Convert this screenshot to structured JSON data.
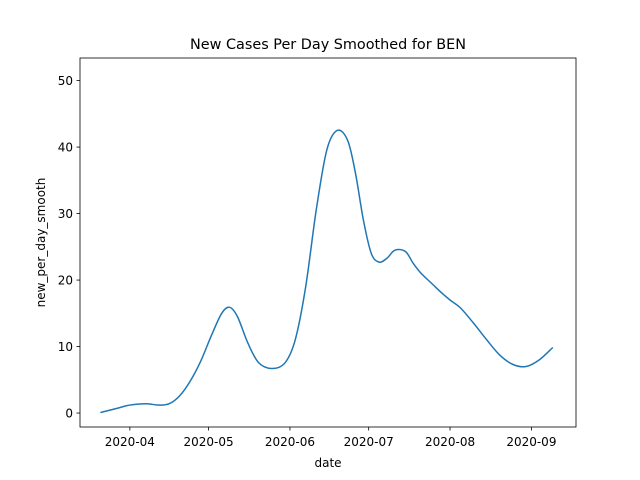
{
  "chart_data": {
    "type": "line",
    "title": "New Cases Per Day Smoothed for BEN",
    "xlabel": "date",
    "ylabel": "new_per_day_smooth",
    "grid": false,
    "legend": "none",
    "xlim": [
      "2020-03-13",
      "2020-09-18"
    ],
    "ylim": [
      -2.1,
      53.4
    ],
    "x_ticks": [
      "2020-04-01",
      "2020-05-01",
      "2020-06-01",
      "2020-07-01",
      "2020-08-01",
      "2020-09-01"
    ],
    "x_tick_labels": [
      "2020-04",
      "2020-05",
      "2020-06",
      "2020-07",
      "2020-08",
      "2020-09"
    ],
    "y_ticks": [
      0,
      10,
      20,
      30,
      40,
      50
    ],
    "y_tick_labels": [
      "0",
      "10",
      "20",
      "30",
      "40",
      "50"
    ],
    "series": [
      {
        "color": "#1f77b4",
        "x": [
          "2020-03-21",
          "2020-03-28",
          "2020-04-01",
          "2020-04-07",
          "2020-04-12",
          "2020-04-16",
          "2020-04-20",
          "2020-04-24",
          "2020-04-28",
          "2020-05-02",
          "2020-05-06",
          "2020-05-09",
          "2020-05-12",
          "2020-05-16",
          "2020-05-20",
          "2020-05-25",
          "2020-05-30",
          "2020-06-03",
          "2020-06-07",
          "2020-06-11",
          "2020-06-15",
          "2020-06-19",
          "2020-06-23",
          "2020-06-26",
          "2020-06-29",
          "2020-07-02",
          "2020-07-05",
          "2020-07-08",
          "2020-07-11",
          "2020-07-15",
          "2020-07-18",
          "2020-07-21",
          "2020-07-25",
          "2020-07-29",
          "2020-08-01",
          "2020-08-05",
          "2020-08-10",
          "2020-08-15",
          "2020-08-20",
          "2020-08-25",
          "2020-08-30",
          "2020-09-04",
          "2020-09-09"
        ],
        "values": [
          0.1,
          0.8,
          1.2,
          1.4,
          1.2,
          1.4,
          2.6,
          4.8,
          7.8,
          11.6,
          15.0,
          15.9,
          14.5,
          10.5,
          7.6,
          6.7,
          7.5,
          11.0,
          19.0,
          30.5,
          39.5,
          42.5,
          41.0,
          36.0,
          29.0,
          24.0,
          22.7,
          23.3,
          24.5,
          24.3,
          22.5,
          21.0,
          19.5,
          18.0,
          17.0,
          15.8,
          13.5,
          11.0,
          8.7,
          7.3,
          7.0,
          8.0,
          9.8
        ]
      }
    ]
  }
}
